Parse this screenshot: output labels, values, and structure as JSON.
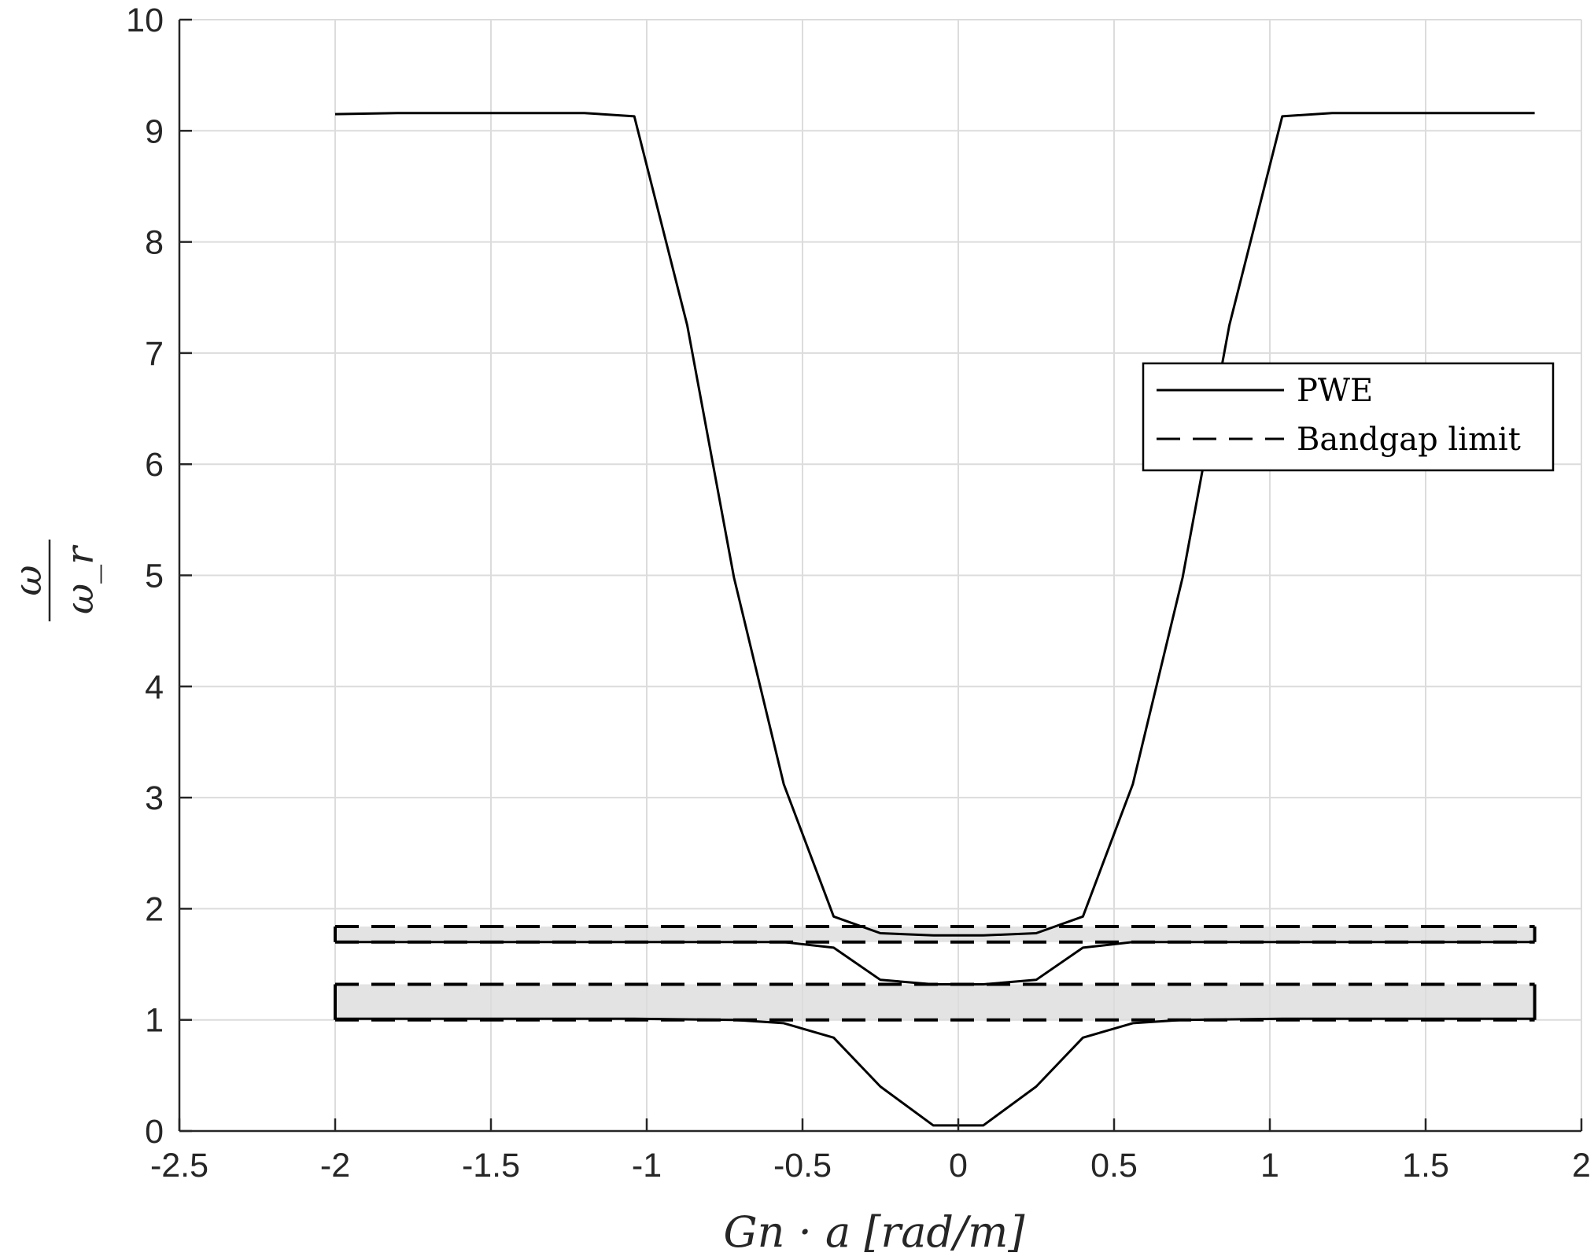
{
  "chart_data": {
    "type": "line",
    "xlabel": "Gn · a [rad/m]",
    "ylabel_num": "ω",
    "ylabel_den": "ω_r",
    "xlim": [
      -2.5,
      2
    ],
    "ylim": [
      0,
      10
    ],
    "x_ticks": [
      -2.5,
      -2,
      -1.5,
      -1,
      -0.5,
      0,
      0.5,
      1,
      1.5,
      2
    ],
    "x_tick_labels": [
      "-2.5",
      "-2",
      "-1.5",
      "-1",
      "-0.5",
      "0",
      "0.5",
      "1",
      "1.5",
      "2"
    ],
    "y_ticks": [
      0,
      1,
      2,
      3,
      4,
      5,
      6,
      7,
      8,
      9,
      10
    ],
    "y_tick_labels": [
      "0",
      "1",
      "2",
      "3",
      "4",
      "5",
      "6",
      "7",
      "8",
      "9",
      "10"
    ],
    "grid": true,
    "legend": {
      "position": "right",
      "entries": [
        {
          "label": "PWE",
          "style": "solid"
        },
        {
          "label": "Bandgap limit",
          "style": "dashed"
        }
      ]
    },
    "series": [
      {
        "name": "PWE",
        "style": "solid",
        "color": "#000000",
        "branches": [
          {
            "x": [
              -2.0,
              -1.8,
              -1.5,
              -1.2,
              -1.04,
              -0.87,
              -0.72,
              -0.56,
              -0.4,
              -0.25,
              -0.08,
              0.08,
              0.25,
              0.4,
              0.56,
              0.72,
              0.87,
              1.04,
              1.2,
              1.5,
              1.8,
              1.85
            ],
            "y": [
              9.15,
              9.16,
              9.16,
              9.16,
              9.13,
              7.25,
              4.98,
              3.12,
              1.93,
              1.78,
              1.76,
              1.76,
              1.78,
              1.93,
              3.12,
              4.98,
              7.25,
              9.13,
              9.16,
              9.16,
              9.16,
              9.16
            ]
          },
          {
            "x": [
              -2.0,
              -1.5,
              -1.04,
              -0.72,
              -0.56,
              -0.4,
              -0.25,
              -0.08,
              0.08,
              0.25,
              0.4,
              0.56,
              0.72,
              1.04,
              1.5,
              1.85
            ],
            "y": [
              1.7,
              1.7,
              1.7,
              1.7,
              1.7,
              1.65,
              1.36,
              1.32,
              1.32,
              1.36,
              1.65,
              1.7,
              1.7,
              1.7,
              1.7,
              1.7
            ]
          },
          {
            "x": [
              -2.0,
              -1.5,
              -1.04,
              -0.72,
              -0.56,
              -0.4,
              -0.25,
              -0.08,
              0.08,
              0.25,
              0.4,
              0.56,
              0.72,
              1.04,
              1.5,
              1.85
            ],
            "y": [
              1.01,
              1.01,
              1.01,
              1.0,
              0.97,
              0.84,
              0.4,
              0.05,
              0.05,
              0.4,
              0.84,
              0.97,
              1.0,
              1.01,
              1.01,
              1.01
            ]
          }
        ]
      },
      {
        "name": "Bandgap limit",
        "style": "dashed",
        "color": "#000000",
        "levels": [
          1.84,
          1.7,
          1.32,
          1.0
        ],
        "x_range": [
          -2.0,
          1.85
        ]
      }
    ],
    "bandgaps": [
      {
        "x_range": [
          -2.0,
          1.85
        ],
        "y_range": [
          1.7,
          1.84
        ]
      },
      {
        "x_range": [
          -2.0,
          1.85
        ],
        "y_range": [
          1.0,
          1.32
        ]
      }
    ]
  }
}
